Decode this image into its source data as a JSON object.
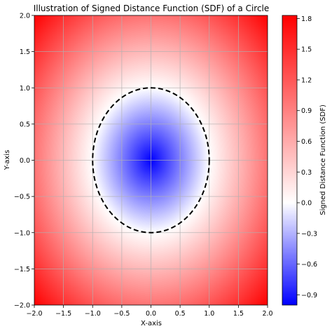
{
  "chart_data": {
    "type": "heatmap",
    "title": "Illustration of Signed Distance Function (SDF) of a Circle",
    "xlabel": "X-axis",
    "ylabel": "Y-axis",
    "xlim": [
      -2.0,
      2.0
    ],
    "ylim": [
      -2.0,
      2.0
    ],
    "x_ticks": [
      -2.0,
      -1.5,
      -1.0,
      -0.5,
      0.0,
      0.5,
      1.0,
      1.5,
      2.0
    ],
    "y_ticks": [
      -2.0,
      -1.5,
      -1.0,
      -0.5,
      0.0,
      0.5,
      1.0,
      1.5,
      2.0
    ],
    "x_tick_labels": [
      "−2.0",
      "−1.5",
      "−1.0",
      "−0.5",
      "0.0",
      "0.5",
      "1.0",
      "1.5",
      "2.0"
    ],
    "y_tick_labels": [
      "−2.0",
      "−1.5",
      "−1.0",
      "−0.5",
      "0.0",
      "0.5",
      "1.0",
      "1.5",
      "2.0"
    ],
    "grid": true,
    "function": "sqrt(x^2 + y^2) - r",
    "circle": {
      "center": [
        0.0,
        0.0
      ],
      "radius": 1.0,
      "style": "dashed",
      "color": "#000000"
    },
    "colormap": "bwr",
    "value_range": [
      -1.0,
      1.83
    ],
    "colorbar": {
      "label": "Signed Distance Function (SDF)",
      "ticks": [
        -0.9,
        -0.6,
        -0.3,
        0.0,
        0.3,
        0.6,
        0.9,
        1.2,
        1.5,
        1.8
      ],
      "tick_labels": [
        "−0.9",
        "−0.6",
        "−0.3",
        "0.0",
        "0.3",
        "0.6",
        "0.9",
        "1.2",
        "1.5",
        "1.8"
      ]
    },
    "colors": {
      "negative": "#0000ff",
      "zero": "#ffffff",
      "positive": "#ff0000",
      "grid": "#b0b0b0"
    }
  }
}
